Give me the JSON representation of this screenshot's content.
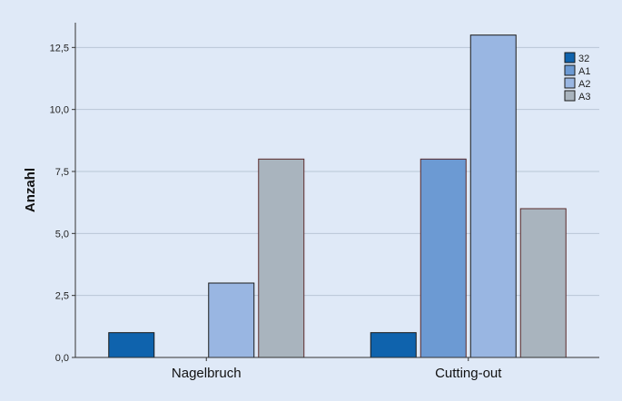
{
  "chart_data": {
    "type": "bar",
    "title": "",
    "xlabel": "",
    "ylabel": "Anzahl",
    "categories": [
      "Nagelbruch",
      "Cutting-out"
    ],
    "series": [
      {
        "name": "32",
        "values": [
          1,
          1
        ],
        "color": "#0f63ad"
      },
      {
        "name": "A1",
        "values": [
          0,
          8
        ],
        "color": "#6c9ad3"
      },
      {
        "name": "A2",
        "values": [
          3,
          13
        ],
        "color": "#99b6e2"
      },
      {
        "name": "A3",
        "values": [
          8,
          6
        ],
        "color": "#a9b4be"
      }
    ],
    "ylim": [
      0,
      13.5
    ],
    "yticks": [
      0,
      2.5,
      5,
      7.5,
      10,
      12.5
    ],
    "ytick_labels": [
      "0,0",
      "2,5",
      "5,0",
      "7,5",
      "10,0",
      "12,5"
    ],
    "grid": true,
    "legend_position": "top-right"
  }
}
